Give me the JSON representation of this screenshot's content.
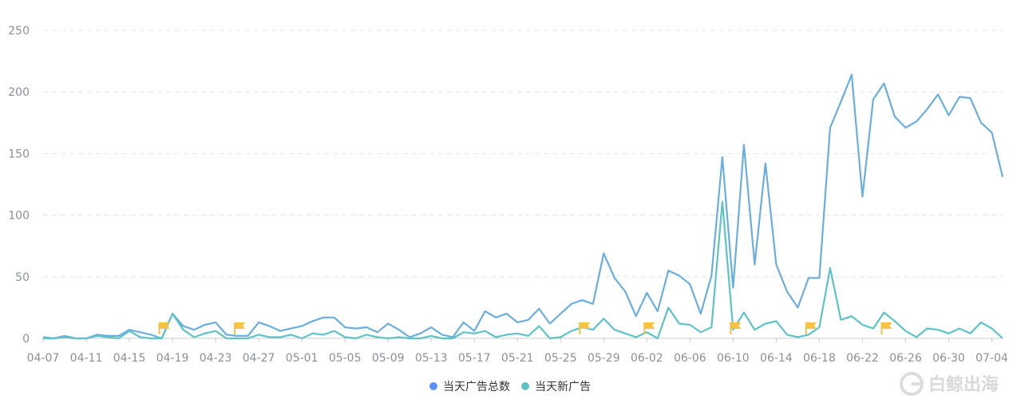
{
  "chart_data": {
    "type": "line",
    "ylim": [
      0,
      250
    ],
    "y_ticks": [
      0,
      50,
      100,
      150,
      200,
      250
    ],
    "x_tick_labels": [
      "04-07",
      "04-11",
      "04-15",
      "04-19",
      "04-23",
      "04-27",
      "05-01",
      "05-05",
      "05-09",
      "05-13",
      "05-17",
      "05-21",
      "05-25",
      "05-29",
      "06-02",
      "06-06",
      "06-10",
      "06-14",
      "06-18",
      "06-22",
      "06-26",
      "06-30",
      "07-04"
    ],
    "grid": "horizontal dashed",
    "legend_position": "bottom-center",
    "series": [
      {
        "name": "当天广告总数",
        "color": "#6aaee0",
        "legend_color": "#5b8ff9",
        "values": [
          1,
          0,
          2,
          0,
          0,
          3,
          2,
          2,
          7,
          5,
          3,
          0,
          20,
          10,
          7,
          11,
          13,
          3,
          2,
          2,
          13,
          10,
          6,
          8,
          10,
          14,
          17,
          17,
          9,
          8,
          9,
          5,
          12,
          7,
          1,
          4,
          9,
          3,
          1,
          13,
          6,
          22,
          17,
          20,
          13,
          15,
          24,
          12,
          20,
          28,
          31,
          28,
          69,
          49,
          38,
          18,
          37,
          22,
          55,
          51,
          44,
          20,
          51,
          147,
          41,
          157,
          60,
          142,
          60,
          38,
          25,
          49,
          49,
          171,
          192,
          214,
          115,
          194,
          207,
          180,
          171,
          176,
          186,
          198,
          181,
          196,
          195,
          175,
          167,
          131
        ]
      },
      {
        "name": "当天新广告",
        "color": "#5ec3c6",
        "legend_color": "#5ec3c6",
        "values": [
          0,
          0,
          1,
          0,
          0,
          2,
          1,
          0,
          6,
          1,
          0,
          0,
          20,
          7,
          1,
          4,
          6,
          0,
          0,
          0,
          3,
          1,
          1,
          3,
          0,
          4,
          3,
          6,
          1,
          0,
          3,
          1,
          0,
          1,
          0,
          0,
          2,
          0,
          0,
          5,
          4,
          6,
          1,
          3,
          4,
          2,
          10,
          0,
          1,
          6,
          9,
          7,
          16,
          7,
          4,
          1,
          5,
          0,
          25,
          12,
          11,
          5,
          9,
          111,
          7,
          21,
          7,
          12,
          14,
          3,
          1,
          3,
          9,
          57,
          15,
          18,
          11,
          8,
          21,
          14,
          6,
          1,
          8,
          7,
          4,
          8,
          4,
          13,
          8,
          0
        ]
      }
    ],
    "flag_markers_at_x_index": [
      11,
      18,
      50,
      56,
      64,
      71,
      78
    ],
    "flag_color": "#f5c242"
  },
  "watermark": {
    "text": "白鲸出海"
  }
}
